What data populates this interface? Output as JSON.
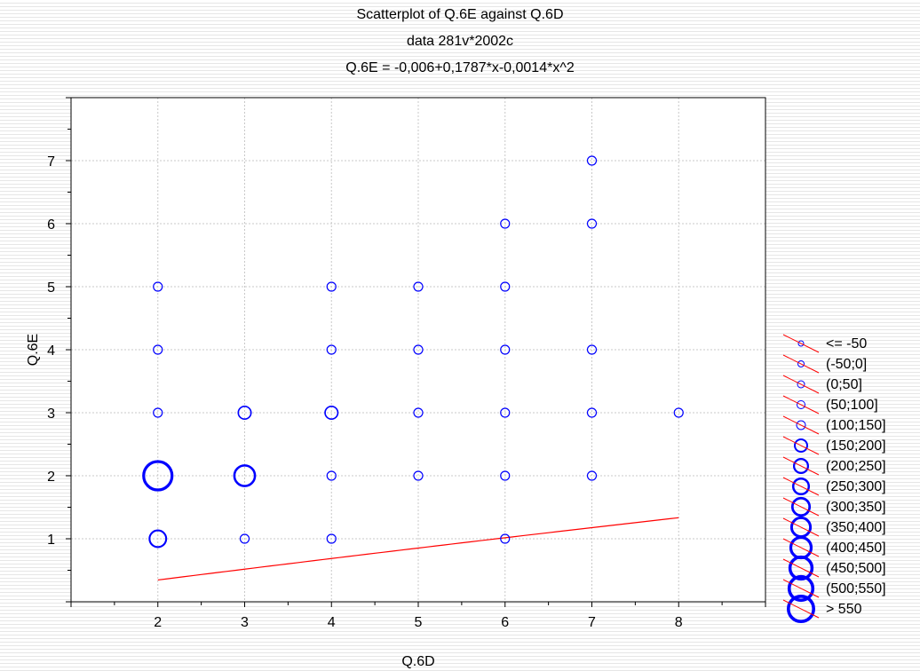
{
  "chart_data": {
    "type": "scatter",
    "title": "Scatterplot of Q.6E against Q.6D",
    "subtitle": "data 281v*2002c",
    "equation": "Q.6E = -0,006+0,1787*x-0,0014*x^2",
    "xlabel": "Q.6D",
    "ylabel": "Q.6E",
    "xlim": [
      1,
      9
    ],
    "ylim": [
      0,
      8
    ],
    "x_ticks": [
      2,
      3,
      4,
      5,
      6,
      7,
      8
    ],
    "y_ticks": [
      1,
      2,
      3,
      4,
      5,
      6,
      7
    ],
    "grid": true,
    "point_color": "#0000ff",
    "fit_color": "#ff0000",
    "fit": {
      "x_range": [
        2,
        8
      ],
      "intercept": -0.006,
      "b1": 0.1787,
      "b2": -0.0014
    },
    "points": [
      {
        "x": 2,
        "y": 1,
        "size": 3
      },
      {
        "x": 2,
        "y": 2,
        "size": 6
      },
      {
        "x": 2,
        "y": 3,
        "size": 1
      },
      {
        "x": 2,
        "y": 4,
        "size": 1
      },
      {
        "x": 2,
        "y": 5,
        "size": 1
      },
      {
        "x": 3,
        "y": 1,
        "size": 1
      },
      {
        "x": 3,
        "y": 2,
        "size": 4
      },
      {
        "x": 3,
        "y": 3,
        "size": 2
      },
      {
        "x": 4,
        "y": 1,
        "size": 1
      },
      {
        "x": 4,
        "y": 2,
        "size": 1
      },
      {
        "x": 4,
        "y": 3,
        "size": 2
      },
      {
        "x": 4,
        "y": 4,
        "size": 1
      },
      {
        "x": 4,
        "y": 5,
        "size": 1
      },
      {
        "x": 5,
        "y": 2,
        "size": 1
      },
      {
        "x": 5,
        "y": 3,
        "size": 1
      },
      {
        "x": 5,
        "y": 4,
        "size": 1
      },
      {
        "x": 5,
        "y": 5,
        "size": 1
      },
      {
        "x": 6,
        "y": 1,
        "size": 1
      },
      {
        "x": 6,
        "y": 2,
        "size": 1
      },
      {
        "x": 6,
        "y": 3,
        "size": 1
      },
      {
        "x": 6,
        "y": 4,
        "size": 1
      },
      {
        "x": 6,
        "y": 5,
        "size": 1
      },
      {
        "x": 6,
        "y": 6,
        "size": 1
      },
      {
        "x": 7,
        "y": 2,
        "size": 1
      },
      {
        "x": 7,
        "y": 3,
        "size": 1
      },
      {
        "x": 7,
        "y": 4,
        "size": 1
      },
      {
        "x": 7,
        "y": 6,
        "size": 1
      },
      {
        "x": 7,
        "y": 7,
        "size": 1
      },
      {
        "x": 8,
        "y": 3,
        "size": 1
      }
    ],
    "legend": {
      "position": "right",
      "entries": [
        "<= -50",
        "(-50;0]",
        "(0;50]",
        "(50;100]",
        "(100;150]",
        "(150;200]",
        "(200;250]",
        "(250;300]",
        "(300;350]",
        "(350;400]",
        "(400;450]",
        "(450;500]",
        "(500;550]",
        "> 550"
      ]
    }
  }
}
